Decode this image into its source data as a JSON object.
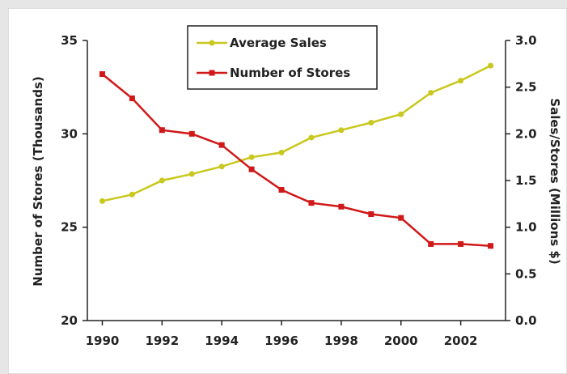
{
  "chart_data": {
    "type": "line",
    "title": "",
    "xlabel": "",
    "ylabel": "Number of Stores (Thousands)",
    "y2label": "Sales/Stores (Millions $)",
    "x_tick_labels": [
      "1990",
      "1992",
      "1994",
      "1996",
      "1998",
      "2000",
      "2002"
    ],
    "x_ticks": [
      1990,
      1992,
      1994,
      1996,
      1998,
      2000,
      2002
    ],
    "xlim": [
      1989.5,
      2003.5
    ],
    "ylim": [
      20,
      35
    ],
    "y_ticks": [
      20,
      25,
      30,
      35
    ],
    "y_tick_labels": [
      "20",
      "25",
      "30",
      "35"
    ],
    "y2lim": [
      0,
      3
    ],
    "y2_ticks": [
      0,
      0.5,
      1,
      1.5,
      2,
      2.5,
      3
    ],
    "y2_tick_labels": [
      "0.0",
      "0.5",
      "1.0",
      "1.5",
      "2.0",
      "2.5",
      "3.0"
    ],
    "legend_position": "top-center",
    "grid": false,
    "x": [
      1990,
      1991,
      1992,
      1993,
      1994,
      1995,
      1996,
      1997,
      1998,
      1999,
      2000,
      2001,
      2002,
      2003
    ],
    "series": [
      {
        "name": "Average Sales",
        "axis": "right",
        "color": "#c8c81e",
        "marker": "circle",
        "values": [
          1.28,
          1.35,
          1.5,
          1.57,
          1.65,
          1.75,
          1.8,
          1.96,
          2.04,
          2.12,
          2.21,
          2.44,
          2.57,
          2.73
        ]
      },
      {
        "name": "Number of Stores",
        "axis": "left",
        "color": "#d01818",
        "marker": "square",
        "values": [
          33.2,
          31.9,
          30.2,
          30.0,
          29.4,
          28.1,
          27.0,
          26.3,
          26.1,
          25.7,
          25.5,
          24.1,
          24.1,
          24.0
        ]
      }
    ]
  }
}
